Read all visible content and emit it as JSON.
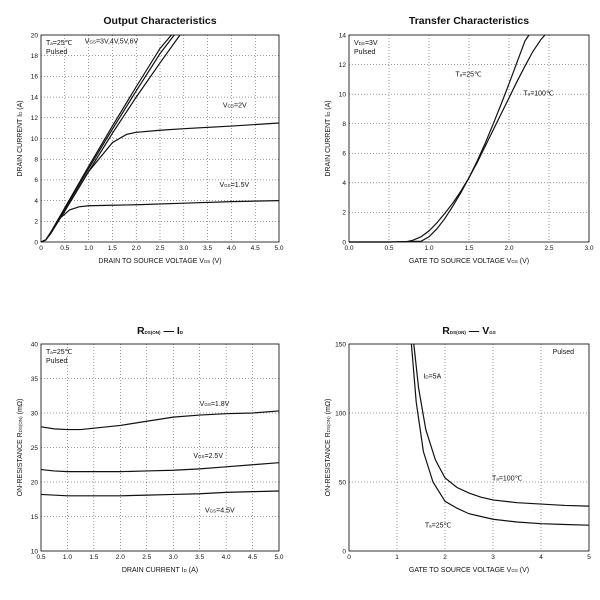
{
  "chart_data": [
    {
      "id": "c1",
      "type": "line",
      "title": "Output Characteristics",
      "xlabel": {
        "main": "DRAIN TO SOURCE VOLTAGE",
        "sym": "V",
        "sub": "DS",
        "unit": "(V)"
      },
      "ylabel": {
        "main": "DRAIN CURRENT",
        "sym": "I",
        "sub": "D",
        "unit": "(A)"
      },
      "xlim": [
        0,
        5
      ],
      "ylim": [
        0,
        20
      ],
      "xticks": [
        0,
        0.5,
        1,
        1.5,
        2,
        2.5,
        3,
        3.5,
        4,
        4.5,
        5
      ],
      "xtick_labels": [
        "0",
        "0.5",
        "1.0",
        "1.5",
        "2.0",
        "2.5",
        "3.0",
        "3.5",
        "4.0",
        "4.5",
        "5.0"
      ],
      "yticks": [
        0,
        2,
        4,
        6,
        8,
        10,
        12,
        14,
        16,
        18,
        20
      ],
      "ytick_labels": [
        "0",
        "2",
        "4",
        "6",
        "8",
        "10",
        "12",
        "14",
        "16",
        "18",
        "20"
      ],
      "grid": true,
      "notes": [
        {
          "sym": "T",
          "sub": "a",
          "text": "=25℃"
        },
        {
          "text": "Pulsed"
        }
      ],
      "series": [
        {
          "name": "VGS=3V,4V,5V,6V",
          "x": [
            0,
            0.1,
            0.2,
            0.5,
            1.0,
            1.5,
            2.0,
            2.5,
            2.92
          ],
          "y": [
            0,
            0.2,
            0.8,
            3.0,
            6.8,
            10.5,
            14.0,
            17.3,
            20
          ]
        },
        {
          "name": "VGS=3V,4V,5V,6V",
          "x": [
            0,
            0.1,
            0.2,
            0.5,
            1.0,
            1.5,
            2.0,
            2.5,
            2.8
          ],
          "y": [
            0,
            0.2,
            0.9,
            3.2,
            7.1,
            10.9,
            14.6,
            18.2,
            20
          ]
        },
        {
          "name": "VGS=3V,4V,5V,6V",
          "x": [
            0,
            0.1,
            0.2,
            0.5,
            1.0,
            1.5,
            2.0,
            2.5,
            2.74
          ],
          "y": [
            0,
            0.2,
            0.9,
            3.3,
            7.3,
            11.2,
            15.0,
            18.7,
            20
          ]
        },
        {
          "name": "VGS=2V",
          "x": [
            0,
            0.1,
            0.2,
            0.5,
            1.0,
            1.5,
            1.8,
            2.0,
            2.5,
            3.0,
            4.0,
            5.0
          ],
          "y": [
            0,
            0.2,
            0.9,
            3.0,
            6.8,
            9.6,
            10.4,
            10.6,
            10.8,
            10.95,
            11.2,
            11.5
          ]
        },
        {
          "name": "VGS=1.5V",
          "x": [
            0,
            0.1,
            0.2,
            0.4,
            0.6,
            0.8,
            1.0,
            1.5,
            2.0,
            3.0,
            4.0,
            5.0
          ],
          "y": [
            0,
            0.2,
            0.8,
            2.3,
            3.1,
            3.4,
            3.5,
            3.55,
            3.6,
            3.75,
            3.9,
            4.0
          ]
        }
      ],
      "labels": [
        {
          "sym": "V",
          "sub": "GS",
          "text": "=3V,4V,5V,6V",
          "x": 0.92,
          "y": 19.2
        },
        {
          "sym": "V",
          "sub": "GS",
          "text": "=2V",
          "x": 3.82,
          "y": 13.0
        },
        {
          "sym": "V",
          "sub": "GS",
          "text": "=1.5V",
          "x": 3.75,
          "y": 5.3
        }
      ]
    },
    {
      "id": "c2",
      "type": "line",
      "title": "Transfer Characteristics",
      "xlabel": {
        "main": "GATE TO SOURCE VOLTAGE",
        "sym": "V",
        "sub": "GS",
        "unit": "(V)"
      },
      "ylabel": {
        "main": "DRAIN CURRENT",
        "sym": "I",
        "sub": "D",
        "unit": "(A)"
      },
      "xlim": [
        0,
        3
      ],
      "ylim": [
        0,
        14
      ],
      "xticks": [
        0,
        0.5,
        1,
        1.5,
        2,
        2.5,
        3
      ],
      "xtick_labels": [
        "0.0",
        "0.5",
        "1.0",
        "1.5",
        "2.0",
        "2.5",
        "3.0"
      ],
      "yticks": [
        0,
        2,
        4,
        6,
        8,
        10,
        12,
        14
      ],
      "ytick_labels": [
        "0",
        "2",
        "4",
        "6",
        "8",
        "10",
        "12",
        "14"
      ],
      "grid": true,
      "notes": [
        {
          "sym": "V",
          "sub": "DS",
          "text": "=3V"
        },
        {
          "text": "Pulsed"
        }
      ],
      "series": [
        {
          "name": "Ta=25℃",
          "x": [
            0,
            0.5,
            0.9,
            1.0,
            1.1,
            1.2,
            1.3,
            1.4,
            1.5,
            1.6,
            1.7,
            1.8,
            1.9,
            2.0,
            2.1,
            2.2,
            2.25
          ],
          "y": [
            0,
            0,
            0.05,
            0.35,
            0.9,
            1.6,
            2.45,
            3.35,
            4.35,
            5.45,
            6.65,
            7.95,
            9.3,
            10.7,
            12.15,
            13.6,
            14
          ]
        },
        {
          "name": "Ta=100℃",
          "x": [
            0,
            0.5,
            0.72,
            0.8,
            0.9,
            1.0,
            1.1,
            1.2,
            1.3,
            1.4,
            1.5,
            1.6,
            1.7,
            1.8,
            1.9,
            2.0,
            2.1,
            2.2,
            2.3,
            2.4,
            2.45
          ],
          "y": [
            0,
            0,
            0.02,
            0.12,
            0.35,
            0.75,
            1.3,
            1.95,
            2.65,
            3.45,
            4.35,
            5.35,
            6.45,
            7.55,
            8.65,
            9.75,
            10.85,
            11.9,
            12.9,
            13.7,
            14
          ]
        }
      ],
      "labels": [
        {
          "sym": "T",
          "sub": "a",
          "text": "=25℃",
          "x": 1.33,
          "y": 11.2
        },
        {
          "sym": "T",
          "sub": "a",
          "text": "=100℃",
          "x": 2.18,
          "y": 9.9
        }
      ]
    },
    {
      "id": "c3",
      "type": "line",
      "title": {
        "sym": "R",
        "sub": "DS(ON)",
        "sep": "—",
        "sym2": "I",
        "sub2": "D"
      },
      "xlabel": {
        "main": "DRAIN CURRENT",
        "sym": "I",
        "sub": "D",
        "unit": "(A)"
      },
      "ylabel": {
        "main": "ON-RESISTANCE",
        "sym": "R",
        "sub": "DS(ON)",
        "unit": "(mΩ)"
      },
      "xlim": [
        0.5,
        5
      ],
      "ylim": [
        10,
        40
      ],
      "xticks": [
        0.5,
        1,
        1.5,
        2,
        2.5,
        3,
        3.5,
        4,
        4.5,
        5
      ],
      "xtick_labels": [
        "0.5",
        "1.0",
        "1.5",
        "2.0",
        "2.5",
        "3.0",
        "3.5",
        "4.0",
        "4.5",
        "5.0"
      ],
      "yticks": [
        10,
        15,
        20,
        25,
        30,
        35,
        40
      ],
      "ytick_labels": [
        "10",
        "15",
        "20",
        "25",
        "30",
        "35",
        "40"
      ],
      "grid": true,
      "notes": [
        {
          "sym": "T",
          "sub": "a",
          "text": "=25℃"
        },
        {
          "text": "Pulsed"
        }
      ],
      "series": [
        {
          "name": "VGS=1.8V",
          "x": [
            0.5,
            0.75,
            1.0,
            1.25,
            1.5,
            2.0,
            2.5,
            3.0,
            3.5,
            4.0,
            4.5,
            5.0
          ],
          "y": [
            28.0,
            27.7,
            27.6,
            27.6,
            27.8,
            28.2,
            28.8,
            29.4,
            29.7,
            29.9,
            30.0,
            30.3
          ]
        },
        {
          "name": "VGS=2.5V",
          "x": [
            0.5,
            0.75,
            1.0,
            1.5,
            2.0,
            2.5,
            3.0,
            3.5,
            4.0,
            4.5,
            5.0
          ],
          "y": [
            21.8,
            21.6,
            21.5,
            21.5,
            21.5,
            21.6,
            21.7,
            21.9,
            22.2,
            22.5,
            22.8
          ]
        },
        {
          "name": "VGS=4.5V",
          "x": [
            0.5,
            1.0,
            1.5,
            2.0,
            2.5,
            3.0,
            3.5,
            4.0,
            4.5,
            5.0
          ],
          "y": [
            18.2,
            18.0,
            18.0,
            18.0,
            18.1,
            18.2,
            18.3,
            18.5,
            18.6,
            18.7
          ]
        }
      ],
      "labels": [
        {
          "sym": "V",
          "sub": "GS",
          "text": "=1.8V",
          "x": 3.5,
          "y": 31.0
        },
        {
          "sym": "V",
          "sub": "GS",
          "text": "=2.5V",
          "x": 3.38,
          "y": 23.5
        },
        {
          "sym": "V",
          "sub": "GS",
          "text": "=4.5V",
          "x": 3.6,
          "y": 15.6
        }
      ]
    },
    {
      "id": "c4",
      "type": "line",
      "title": {
        "sym": "R",
        "sub": "DS(ON)",
        "sep": "—",
        "sym2": "V",
        "sub2": "GS"
      },
      "xlabel": {
        "main": "GATE TO SOURCE VOLTAGE",
        "sym": "V",
        "sub": "GS",
        "unit": "(V)"
      },
      "ylabel": {
        "main": "ON-RESISTANCE",
        "sym": "R",
        "sub": "DS(ON)",
        "unit": "(mΩ)"
      },
      "xlim": [
        0,
        5
      ],
      "ylim": [
        0,
        150
      ],
      "xticks": [
        0,
        1,
        2,
        3,
        4,
        5
      ],
      "xtick_labels": [
        "0",
        "1",
        "2",
        "3",
        "4",
        "5"
      ],
      "yticks": [
        0,
        50,
        100,
        150
      ],
      "ytick_labels": [
        "0",
        "50",
        "100",
        "150"
      ],
      "grid": true,
      "notes": [
        {
          "text": "Pulsed",
          "align": "right"
        }
      ],
      "series": [
        {
          "name": "Ta=100℃",
          "x": [
            1.35,
            1.45,
            1.6,
            1.8,
            2.0,
            2.25,
            2.5,
            2.75,
            3.0,
            3.5,
            4.0,
            4.5,
            5.0
          ],
          "y": [
            150,
            118,
            88,
            66,
            53,
            46,
            42,
            39,
            37,
            35,
            34,
            33,
            32.5
          ]
        },
        {
          "name": "Ta=25℃",
          "x": [
            1.3,
            1.4,
            1.55,
            1.75,
            2.0,
            2.25,
            2.5,
            2.75,
            3.0,
            3.5,
            4.0,
            4.5,
            5.0
          ],
          "y": [
            150,
            108,
            72,
            50,
            36,
            31,
            27,
            25,
            23,
            21,
            19.8,
            19.2,
            18.7
          ]
        }
      ],
      "labels": [
        {
          "sym": "I",
          "sub": "D",
          "text": "=5A",
          "x": 1.55,
          "y": 125
        },
        {
          "sym": "T",
          "sub": "a",
          "text": "=100℃",
          "x": 2.98,
          "y": 51
        },
        {
          "sym": "T",
          "sub": "a",
          "text": "=25℃",
          "x": 1.58,
          "y": 17
        }
      ]
    }
  ]
}
